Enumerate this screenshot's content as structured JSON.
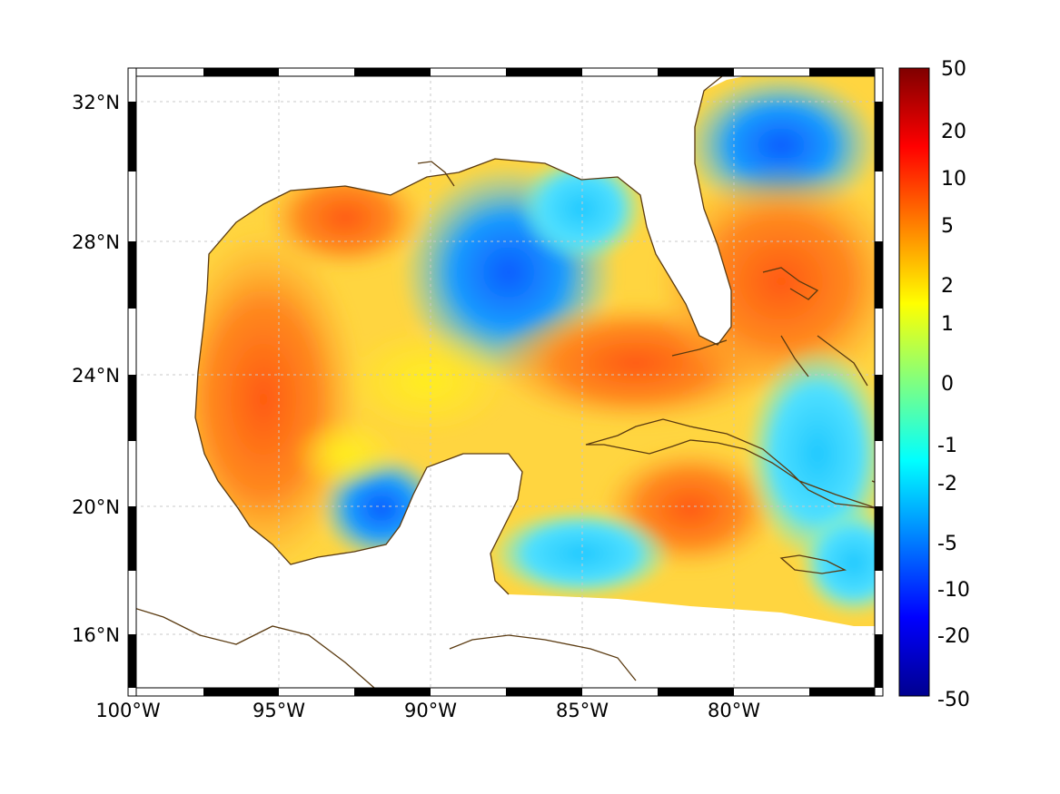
{
  "map": {
    "region": "Gulf of Mexico and Caribbean",
    "lon_range": [
      -100,
      -75.3
    ],
    "lat_range": [
      14.3,
      33.0
    ],
    "grid": true,
    "coastline_color": "#5a3a10",
    "land_color": "#ffffff",
    "x_ticks": [
      "100°W",
      "95°W",
      "90°W",
      "85°W",
      "80°W"
    ],
    "y_ticks": [
      "32°N",
      "28°N",
      "24°N",
      "20°N",
      "16°N"
    ]
  },
  "colorbar": {
    "colormap": "jet",
    "scale": "nonlinear",
    "labels": [
      "50",
      "20",
      "10",
      "5",
      "2",
      "1",
      "0",
      "-1",
      "-2",
      "-5",
      "-10",
      "-20",
      "-50"
    ],
    "colors": [
      "#7f0000",
      "#ff0000",
      "#ff8000",
      "#ffff00",
      "#80ff80",
      "#00ffff",
      "#0080ff",
      "#0000ff",
      "#00008f"
    ]
  }
}
